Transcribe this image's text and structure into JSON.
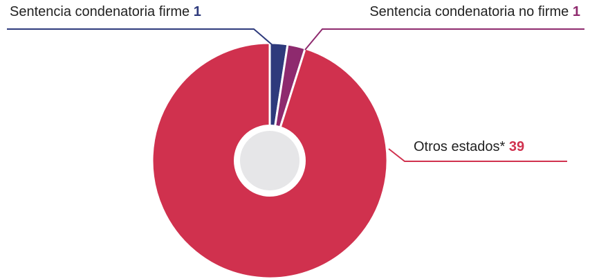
{
  "chart_data": {
    "type": "pie",
    "categories": [
      "Sentencia condenatoria firme",
      "Sentencia condenatoria no firme",
      "Otros estados*"
    ],
    "values": [
      1,
      1,
      39
    ],
    "colors": [
      "#2e3a7c",
      "#8e2a6e",
      "#d0314e"
    ],
    "hole": true
  }
}
